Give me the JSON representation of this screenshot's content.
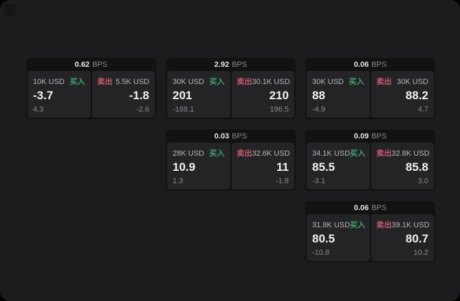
{
  "labels": {
    "buy": "买入",
    "sell": "卖出",
    "bps_unit": "BPS"
  },
  "colors": {
    "window_bg": "#1c1c1e",
    "logo_bg": "#151517",
    "card_bg": "#121213",
    "panel_bg": "#242427",
    "header_value": "#e9e9ea",
    "value_white": "#f2f2f2",
    "label_gray": "#b6b6bb",
    "sub_gray": "#8b8b90",
    "buy_green": "#43a06f",
    "sell_red": "#c9586a"
  },
  "cards": [
    {
      "col": 1,
      "row": 1,
      "bps": "0.62",
      "buy": {
        "amount": "10K USD",
        "price": "-3.7",
        "delta": "4.3"
      },
      "sell": {
        "amount": "5.5K USD",
        "price": "-1.8",
        "delta": "-2.6"
      }
    },
    {
      "col": 2,
      "row": 1,
      "bps": "2.92",
      "buy": {
        "amount": "30K USD",
        "price": "201",
        "delta": "-188.1"
      },
      "sell": {
        "amount": "30.1K USD",
        "price": "210",
        "delta": "196.5"
      }
    },
    {
      "col": 3,
      "row": 1,
      "bps": "0.06",
      "buy": {
        "amount": "30K USD",
        "price": "88",
        "delta": "-4.9"
      },
      "sell": {
        "amount": "30K USD",
        "price": "88.2",
        "delta": "4.7"
      }
    },
    {
      "col": 2,
      "row": 2,
      "bps": "0.03",
      "buy": {
        "amount": "28K USD",
        "price": "10.9",
        "delta": "1.3"
      },
      "sell": {
        "amount": "32.6K USD",
        "price": "11",
        "delta": "-1.8"
      }
    },
    {
      "col": 3,
      "row": 2,
      "bps": "0.09",
      "buy": {
        "amount": "34.1K USD",
        "price": "85.5",
        "delta": "-3.1"
      },
      "sell": {
        "amount": "32.8K USD",
        "price": "85.8",
        "delta": "3.0"
      }
    },
    {
      "col": 3,
      "row": 3,
      "bps": "0.06",
      "buy": {
        "amount": "31.8K USD",
        "price": "80.5",
        "delta": "-10.8"
      },
      "sell": {
        "amount": "39.1K USD",
        "price": "80.7",
        "delta": "10.2"
      }
    }
  ]
}
